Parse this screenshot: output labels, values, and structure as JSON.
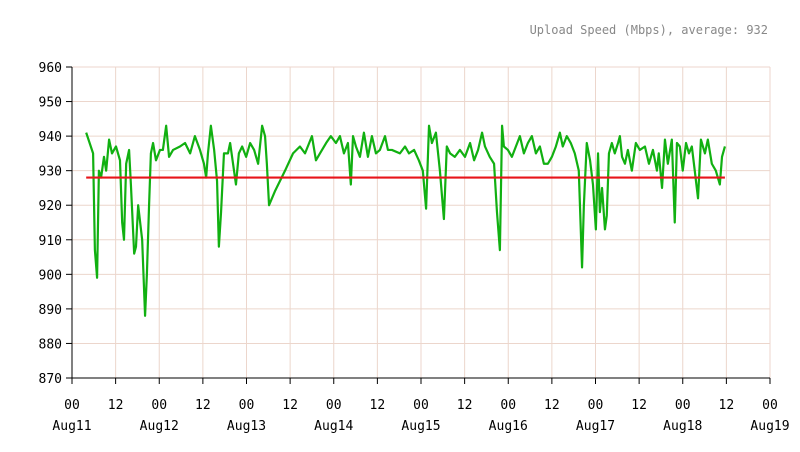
{
  "chart_data": {
    "type": "line",
    "title": "Upload Speed (Mbps), average: 932",
    "xlim": [
      0,
      192
    ],
    "ylim": [
      870,
      960
    ],
    "yticks": [
      870,
      880,
      890,
      900,
      910,
      920,
      930,
      940,
      950,
      960
    ],
    "xticks": [
      {
        "value": 0,
        "label": "00"
      },
      {
        "value": 12,
        "label": "12"
      },
      {
        "value": 24,
        "label": "00"
      },
      {
        "value": 36,
        "label": "12"
      },
      {
        "value": 48,
        "label": "00"
      },
      {
        "value": 60,
        "label": "12"
      },
      {
        "value": 72,
        "label": "00"
      },
      {
        "value": 84,
        "label": "12"
      },
      {
        "value": 96,
        "label": "00"
      },
      {
        "value": 108,
        "label": "12"
      },
      {
        "value": 120,
        "label": "00"
      },
      {
        "value": 132,
        "label": "12"
      },
      {
        "value": 144,
        "label": "00"
      },
      {
        "value": 156,
        "label": "12"
      },
      {
        "value": 168,
        "label": "00"
      },
      {
        "value": 180,
        "label": "12"
      },
      {
        "value": 192,
        "label": "00"
      }
    ],
    "xdate_labels": [
      {
        "value": 0,
        "label": "Aug11"
      },
      {
        "value": 24,
        "label": "Aug12"
      },
      {
        "value": 48,
        "label": "Aug13"
      },
      {
        "value": 72,
        "label": "Aug14"
      },
      {
        "value": 96,
        "label": "Aug15"
      },
      {
        "value": 120,
        "label": "Aug16"
      },
      {
        "value": 144,
        "label": "Aug17"
      },
      {
        "value": 168,
        "label": "Aug18"
      },
      {
        "value": 192,
        "label": "Aug19"
      }
    ],
    "grid": true,
    "series": [
      {
        "color": "#11b011",
        "x": [
          3.9,
          5.8,
          6.3,
          6.9,
          7.4,
          8.0,
          8.8,
          9.4,
          10.2,
          11.0,
          12.1,
          13.2,
          13.8,
          14.3,
          14.9,
          15.7,
          16.2,
          17.1,
          17.6,
          18.2,
          19.3,
          20.1,
          20.6,
          21.2,
          21.7,
          22.3,
          23.1,
          24.2,
          25.0,
          25.9,
          26.7,
          27.8,
          29.7,
          31.1,
          32.5,
          33.8,
          35.2,
          36.3,
          36.9,
          37.4,
          38.2,
          39.1,
          39.9,
          40.4,
          41.0,
          41.8,
          42.9,
          43.5,
          44.3,
          45.1,
          45.9,
          46.8,
          47.9,
          49.0,
          50.1,
          51.2,
          52.3,
          53.1,
          53.6,
          54.2,
          55.8,
          58.6,
          60.8,
          62.7,
          64.1,
          66.0,
          67.1,
          68.2,
          69.9,
          71.2,
          72.6,
          73.7,
          74.8,
          75.9,
          76.7,
          77.3,
          78.1,
          79.2,
          80.3,
          81.4,
          82.5,
          83.6,
          84.7,
          86.1,
          86.9,
          88.0,
          90.2,
          91.6,
          92.7,
          94.1,
          95.4,
          96.5,
          97.4,
          98.2,
          99.0,
          100.1,
          101.2,
          102.3,
          103.1,
          104.0,
          105.3,
          106.7,
          108.1,
          109.5,
          110.6,
          111.7,
          112.8,
          113.6,
          114.9,
          116.1,
          116.9,
          117.7,
          118.3,
          118.8,
          119.9,
          121.0,
          122.1,
          123.2,
          124.3,
          125.4,
          126.5,
          127.6,
          128.7,
          129.8,
          130.9,
          132.0,
          133.1,
          134.2,
          135.0,
          136.1,
          137.2,
          138.3,
          139.4,
          140.3,
          140.8,
          141.6,
          142.5,
          143.3,
          144.1,
          144.7,
          145.2,
          145.8,
          146.6,
          147.1,
          147.7,
          148.5,
          149.3,
          150.2,
          150.7,
          151.3,
          152.1,
          152.9,
          154.0,
          155.1,
          156.2,
          157.6,
          158.7,
          159.8,
          160.9,
          161.4,
          162.3,
          163.1,
          163.9,
          165.0,
          165.8,
          166.4,
          167.2,
          168.0,
          168.9,
          169.7,
          170.5,
          171.3,
          172.2,
          173.0,
          174.1,
          174.9,
          176.0,
          177.1,
          178.2,
          178.8,
          179.6
        ],
        "values": [
          941,
          935,
          907,
          899,
          930,
          928,
          934,
          930,
          939,
          935,
          937,
          933,
          915,
          910,
          932,
          936,
          926,
          906,
          908,
          920,
          910,
          888,
          900,
          920,
          935,
          938,
          933,
          936,
          936,
          943,
          934,
          936,
          937,
          938,
          935,
          940,
          936,
          932,
          928,
          935,
          943,
          936,
          927,
          908,
          918,
          935,
          935,
          938,
          932,
          926,
          935,
          937,
          934,
          938,
          936,
          932,
          943,
          940,
          932,
          920,
          924,
          930,
          935,
          937,
          935,
          940,
          933,
          935,
          938,
          940,
          938,
          940,
          935,
          938,
          926,
          940,
          937,
          934,
          941,
          934,
          940,
          935,
          936,
          940,
          936,
          936,
          935,
          937,
          935,
          936,
          933,
          930,
          919,
          943,
          938,
          941,
          930,
          916,
          937,
          935,
          934,
          936,
          934,
          938,
          933,
          936,
          941,
          937,
          934,
          932,
          918,
          907,
          943,
          937,
          936,
          934,
          937,
          940,
          935,
          938,
          940,
          935,
          937,
          932,
          932,
          934,
          937,
          941,
          937,
          940,
          938,
          935,
          930,
          902,
          920,
          938,
          933,
          926,
          913,
          935,
          918,
          925,
          913,
          917,
          935,
          938,
          935,
          938,
          940,
          934,
          932,
          936,
          930,
          938,
          936,
          937,
          932,
          936,
          930,
          935,
          925,
          939,
          932,
          939,
          915,
          938,
          937,
          930,
          938,
          935,
          937,
          930,
          922,
          939,
          935,
          939,
          932,
          930,
          926,
          934,
          937
        ]
      },
      {
        "color": "#e8141a",
        "x": [
          3.9,
          179.6
        ],
        "values": [
          928,
          928
        ]
      }
    ]
  }
}
